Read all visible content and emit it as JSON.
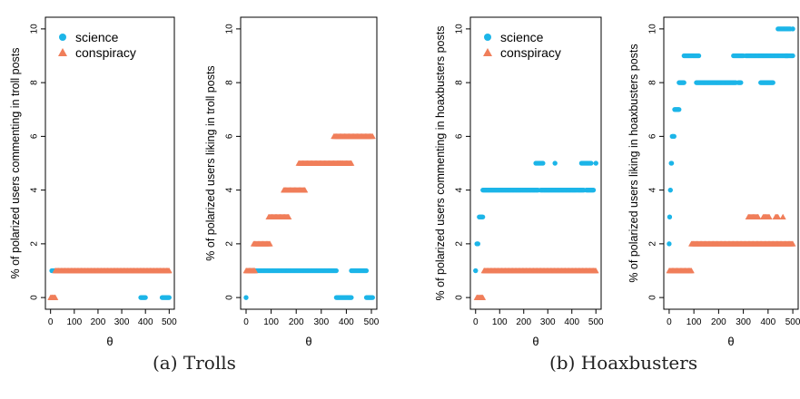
{
  "colors": {
    "science": "#1cb5e8",
    "conspiracy": "#f07e5a"
  },
  "captions": {
    "a": "(a)  Trolls",
    "b": "(b)  Hoaxbusters"
  },
  "chart_data": [
    {
      "type": "scatter",
      "xlabel": "θ",
      "ylabel": "% of polarized users commenting in troll posts",
      "xlim": [
        0,
        500
      ],
      "ylim": [
        0,
        10
      ],
      "xticks": [
        0,
        100,
        200,
        300,
        400,
        500
      ],
      "yticks": [
        0,
        2,
        4,
        6,
        8,
        10
      ],
      "legend": {
        "placement": "top-left",
        "entries": [
          "science",
          "conspiracy"
        ]
      },
      "series": [
        {
          "name": "science",
          "marker": "circle",
          "color": "#1cb5e8",
          "segments": [
            {
              "x": [
                5,
                20
              ],
              "y": 1
            },
            {
              "x": [
                380,
                400
              ],
              "y": 0
            },
            {
              "x": [
                470,
                500
              ],
              "y": 0
            }
          ]
        },
        {
          "name": "conspiracy",
          "marker": "triangle",
          "color": "#f07e5a",
          "segments": [
            {
              "x": [
                0,
                20
              ],
              "y": 0
            },
            {
              "x": [
                20,
                500
              ],
              "y": 1
            }
          ]
        }
      ]
    },
    {
      "type": "scatter",
      "xlabel": "θ",
      "ylabel": "% of polarized users liking in troll posts",
      "xlim": [
        0,
        500
      ],
      "ylim": [
        0,
        10
      ],
      "xticks": [
        0,
        100,
        200,
        300,
        400,
        500
      ],
      "yticks": [
        0,
        2,
        4,
        6,
        8,
        10
      ],
      "series": [
        {
          "name": "science",
          "marker": "circle",
          "color": "#1cb5e8",
          "segments": [
            {
              "x": [
                0,
                0
              ],
              "y": 0
            },
            {
              "x": [
                10,
                360
              ],
              "y": 1
            },
            {
              "x": [
                360,
                420
              ],
              "y": 0
            },
            {
              "x": [
                420,
                480
              ],
              "y": 1
            },
            {
              "x": [
                480,
                505
              ],
              "y": 0
            }
          ]
        },
        {
          "name": "conspiracy",
          "marker": "triangle",
          "color": "#f07e5a",
          "segments": [
            {
              "x": [
                0,
                35
              ],
              "y": 1
            },
            {
              "x": [
                30,
                95
              ],
              "y": 2
            },
            {
              "x": [
                90,
                170
              ],
              "y": 3
            },
            {
              "x": [
                150,
                235
              ],
              "y": 4
            },
            {
              "x": [
                210,
                375
              ],
              "y": 5
            },
            {
              "x": [
                375,
                420
              ],
              "y": 5
            },
            {
              "x": [
                350,
                505
              ],
              "y": 6
            }
          ]
        }
      ]
    },
    {
      "type": "scatter",
      "xlabel": "θ",
      "ylabel": "% of polarized users commenting in hoaxbusters posts",
      "xlim": [
        0,
        500
      ],
      "ylim": [
        0,
        10
      ],
      "xticks": [
        0,
        100,
        200,
        300,
        400,
        500
      ],
      "yticks": [
        0,
        2,
        4,
        6,
        8,
        10
      ],
      "legend": {
        "placement": "top-left",
        "entries": [
          "science",
          "conspiracy"
        ]
      },
      "series": [
        {
          "name": "science",
          "marker": "circle",
          "color": "#1cb5e8",
          "segments": [
            {
              "x": [
                0,
                0
              ],
              "y": 1
            },
            {
              "x": [
                5,
                10
              ],
              "y": 2
            },
            {
              "x": [
                15,
                30
              ],
              "y": 3
            },
            {
              "x": [
                30,
                260
              ],
              "y": 4
            },
            {
              "x": [
                250,
                280
              ],
              "y": 5
            },
            {
              "x": [
                270,
                450
              ],
              "y": 4
            },
            {
              "x": [
                330,
                330
              ],
              "y": 5
            },
            {
              "x": [
                440,
                480
              ],
              "y": 5
            },
            {
              "x": [
                460,
                490
              ],
              "y": 4
            },
            {
              "x": [
                500,
                500
              ],
              "y": 5
            }
          ]
        },
        {
          "name": "conspiracy",
          "marker": "triangle",
          "color": "#f07e5a",
          "segments": [
            {
              "x": [
                5,
                30
              ],
              "y": 0
            },
            {
              "x": [
                35,
                500
              ],
              "y": 1
            }
          ]
        }
      ]
    },
    {
      "type": "scatter",
      "xlabel": "θ",
      "ylabel": "% of polarized users liking in hoaxbusters posts",
      "xlim": [
        0,
        500
      ],
      "ylim": [
        0,
        10
      ],
      "xticks": [
        0,
        100,
        200,
        300,
        400,
        500
      ],
      "yticks": [
        0,
        2,
        4,
        6,
        8,
        10
      ],
      "series": [
        {
          "name": "science",
          "marker": "circle",
          "color": "#1cb5e8",
          "segments": [
            {
              "x": [
                0,
                0
              ],
              "y": 2
            },
            {
              "x": [
                2,
                2
              ],
              "y": 3
            },
            {
              "x": [
                5,
                5
              ],
              "y": 4
            },
            {
              "x": [
                8,
                10
              ],
              "y": 5
            },
            {
              "x": [
                12,
                20
              ],
              "y": 6
            },
            {
              "x": [
                22,
                40
              ],
              "y": 7
            },
            {
              "x": [
                40,
                60
              ],
              "y": 8
            },
            {
              "x": [
                60,
                120
              ],
              "y": 9
            },
            {
              "x": [
                110,
                270
              ],
              "y": 8
            },
            {
              "x": [
                260,
                300
              ],
              "y": 9
            },
            {
              "x": [
                280,
                290
              ],
              "y": 8
            },
            {
              "x": [
                310,
                480
              ],
              "y": 9
            },
            {
              "x": [
                370,
                420
              ],
              "y": 8
            },
            {
              "x": [
                440,
                490
              ],
              "y": 10
            },
            {
              "x": [
                470,
                500
              ],
              "y": 9
            },
            {
              "x": [
                500,
                500
              ],
              "y": 10
            }
          ]
        },
        {
          "name": "conspiracy",
          "marker": "triangle",
          "color": "#f07e5a",
          "segments": [
            {
              "x": [
                0,
                90
              ],
              "y": 1
            },
            {
              "x": [
                90,
                500
              ],
              "y": 2
            },
            {
              "x": [
                320,
                360
              ],
              "y": 3
            },
            {
              "x": [
                380,
                405
              ],
              "y": 3
            },
            {
              "x": [
                430,
                440
              ],
              "y": 3
            },
            {
              "x": [
                460,
                460
              ],
              "y": 3
            }
          ]
        }
      ]
    }
  ]
}
